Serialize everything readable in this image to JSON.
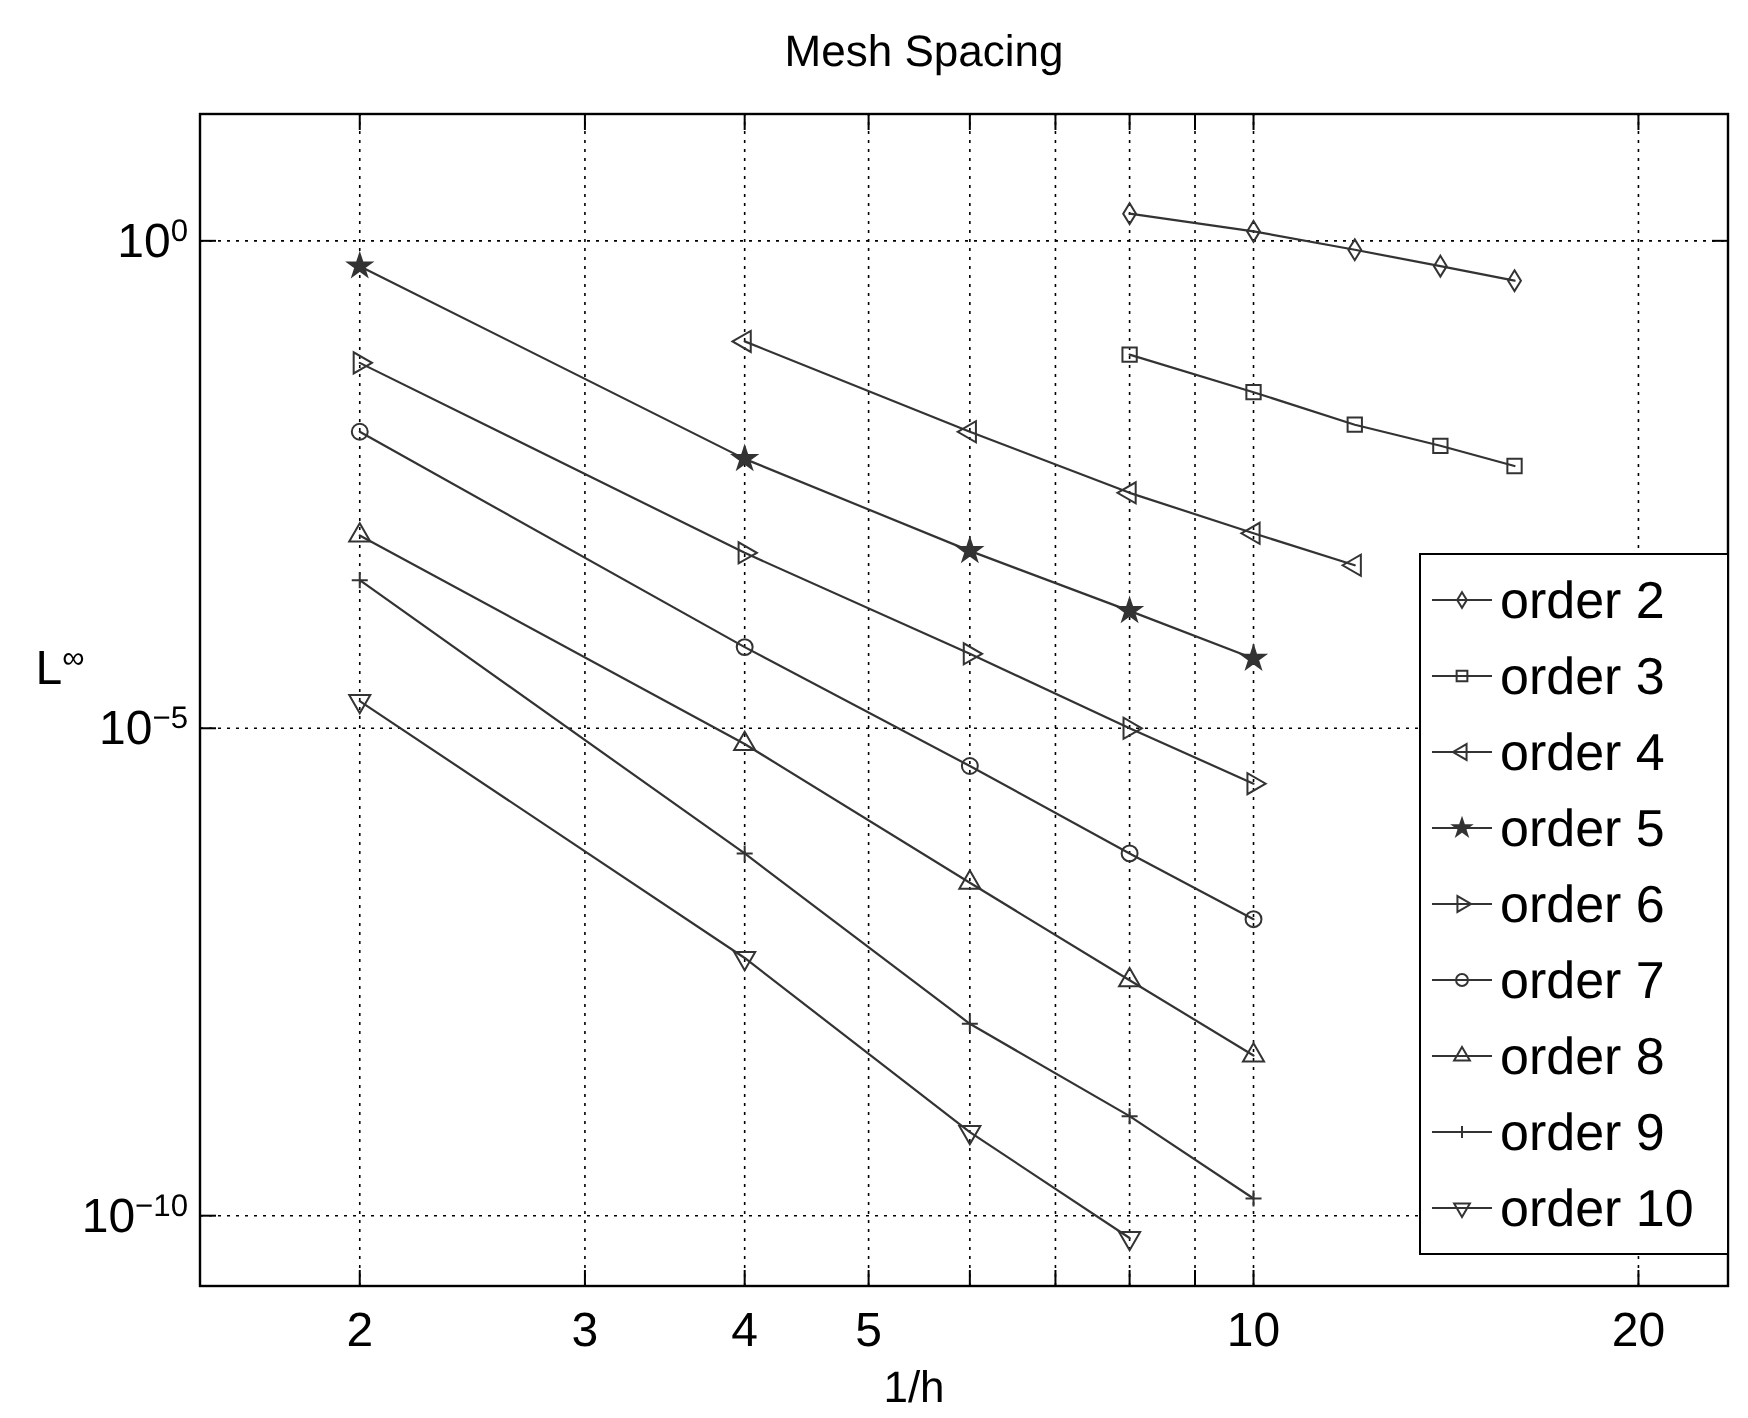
{
  "chart_data": {
    "type": "line",
    "title": "Mesh Spacing",
    "xlabel": "1/h",
    "ylabel": "L$^{∞}$",
    "log": "xy",
    "grid": true,
    "legend": "bottom right",
    "line_style": "solid",
    "xlim": [
      1.5,
      23.5
    ],
    "ylim": [
      1.9e-11,
      20
    ],
    "xticks": [
      2,
      3,
      4,
      5,
      {
        "value": 6,
        "label": null
      },
      {
        "value": 7,
        "label": null
      },
      {
        "value": 8,
        "label": null
      },
      {
        "value": 9,
        "label": null
      },
      10,
      20
    ],
    "yticks": [
      {
        "value": 1e-10,
        "label": "10$^{−10}$"
      },
      {
        "value": 1e-05,
        "label": "10$^{−5}$"
      },
      {
        "value": 1,
        "label": "10$^{0}$"
      }
    ],
    "series": [
      {
        "name": "order 2",
        "color": "#333333",
        "marker": "diamond",
        "x": [
          8,
          10,
          12,
          14,
          16
        ],
        "values": [
          1.9,
          1.25,
          0.81,
          0.55,
          0.39
        ]
      },
      {
        "name": "order 3",
        "color": "#333333",
        "marker": "square",
        "x": [
          8,
          10,
          12,
          14,
          16
        ],
        "values": [
          0.068,
          0.028,
          0.013,
          0.0079,
          0.0049
        ]
      },
      {
        "name": "order 4",
        "color": "#333333",
        "marker": "triangle-left",
        "x": [
          4,
          6,
          8,
          10,
          12
        ],
        "values": [
          0.093,
          0.011,
          0.0026,
          0.001,
          0.00047
        ]
      },
      {
        "name": "order 5",
        "color": "#333333",
        "marker": "star",
        "x": [
          2,
          4,
          6,
          8,
          10
        ],
        "values": [
          0.55,
          0.0058,
          0.00066,
          0.00016,
          5.2e-05
        ]
      },
      {
        "name": "order 6",
        "color": "#333333",
        "marker": "triangle-right",
        "x": [
          2,
          4,
          6,
          8,
          10
        ],
        "values": [
          0.056,
          0.00063,
          5.8e-05,
          1e-05,
          2.7e-06
        ]
      },
      {
        "name": "order 7",
        "color": "#333333",
        "marker": "circle",
        "x": [
          2,
          4,
          6,
          8,
          10
        ],
        "values": [
          0.011,
          6.8e-05,
          4.1e-06,
          5.2e-07,
          1.1e-07
        ]
      },
      {
        "name": "order 8",
        "color": "#333333",
        "marker": "triangle",
        "x": [
          2,
          4,
          6,
          8,
          10
        ],
        "values": [
          0.00095,
          6.9e-06,
          2.6e-07,
          2.6e-08,
          4.4e-09
        ]
      },
      {
        "name": "order 9",
        "color": "#333333",
        "marker": "cross",
        "x": [
          2,
          4,
          6,
          8,
          10
        ],
        "values": [
          0.00033,
          5.2e-07,
          9.3e-09,
          1.05e-09,
          1.5e-10
        ]
      },
      {
        "name": "order 10",
        "color": "#333333",
        "marker": "triangle-down",
        "x": [
          2,
          4,
          6,
          8
        ],
        "values": [
          1.9e-05,
          4.4e-08,
          7.2e-10,
          5.9e-11
        ]
      }
    ]
  }
}
